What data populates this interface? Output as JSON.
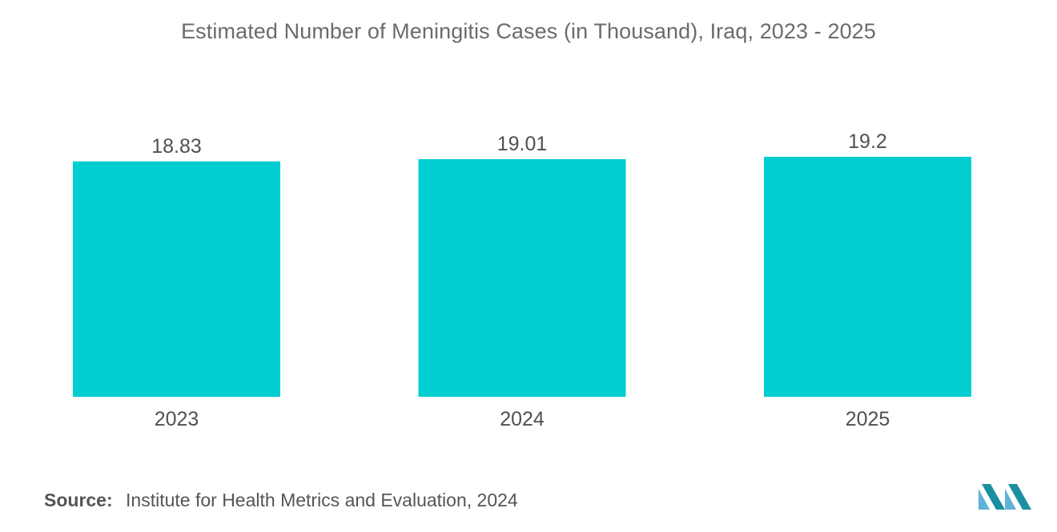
{
  "chart_data": {
    "type": "bar",
    "title": "Estimated Number of Meningitis Cases (in Thousand), Iraq, 2023 - 2025",
    "categories": [
      "2023",
      "2024",
      "2025"
    ],
    "values": [
      18.83,
      19.01,
      19.2
    ],
    "value_labels": [
      "18.83",
      "19.01",
      "19.2"
    ],
    "xlabel": "",
    "ylabel": "",
    "ylim": [
      0,
      19.2
    ],
    "grid": false,
    "legend": "none",
    "bar_color": "#00ced1"
  },
  "source": {
    "label": "Source:",
    "text": "Institute for Health Metrics and Evaluation, 2024"
  },
  "logo": {
    "icon": "mordor-intelligence-logo-icon",
    "colors": [
      "#5fb2d8",
      "#1b8fa0"
    ]
  }
}
